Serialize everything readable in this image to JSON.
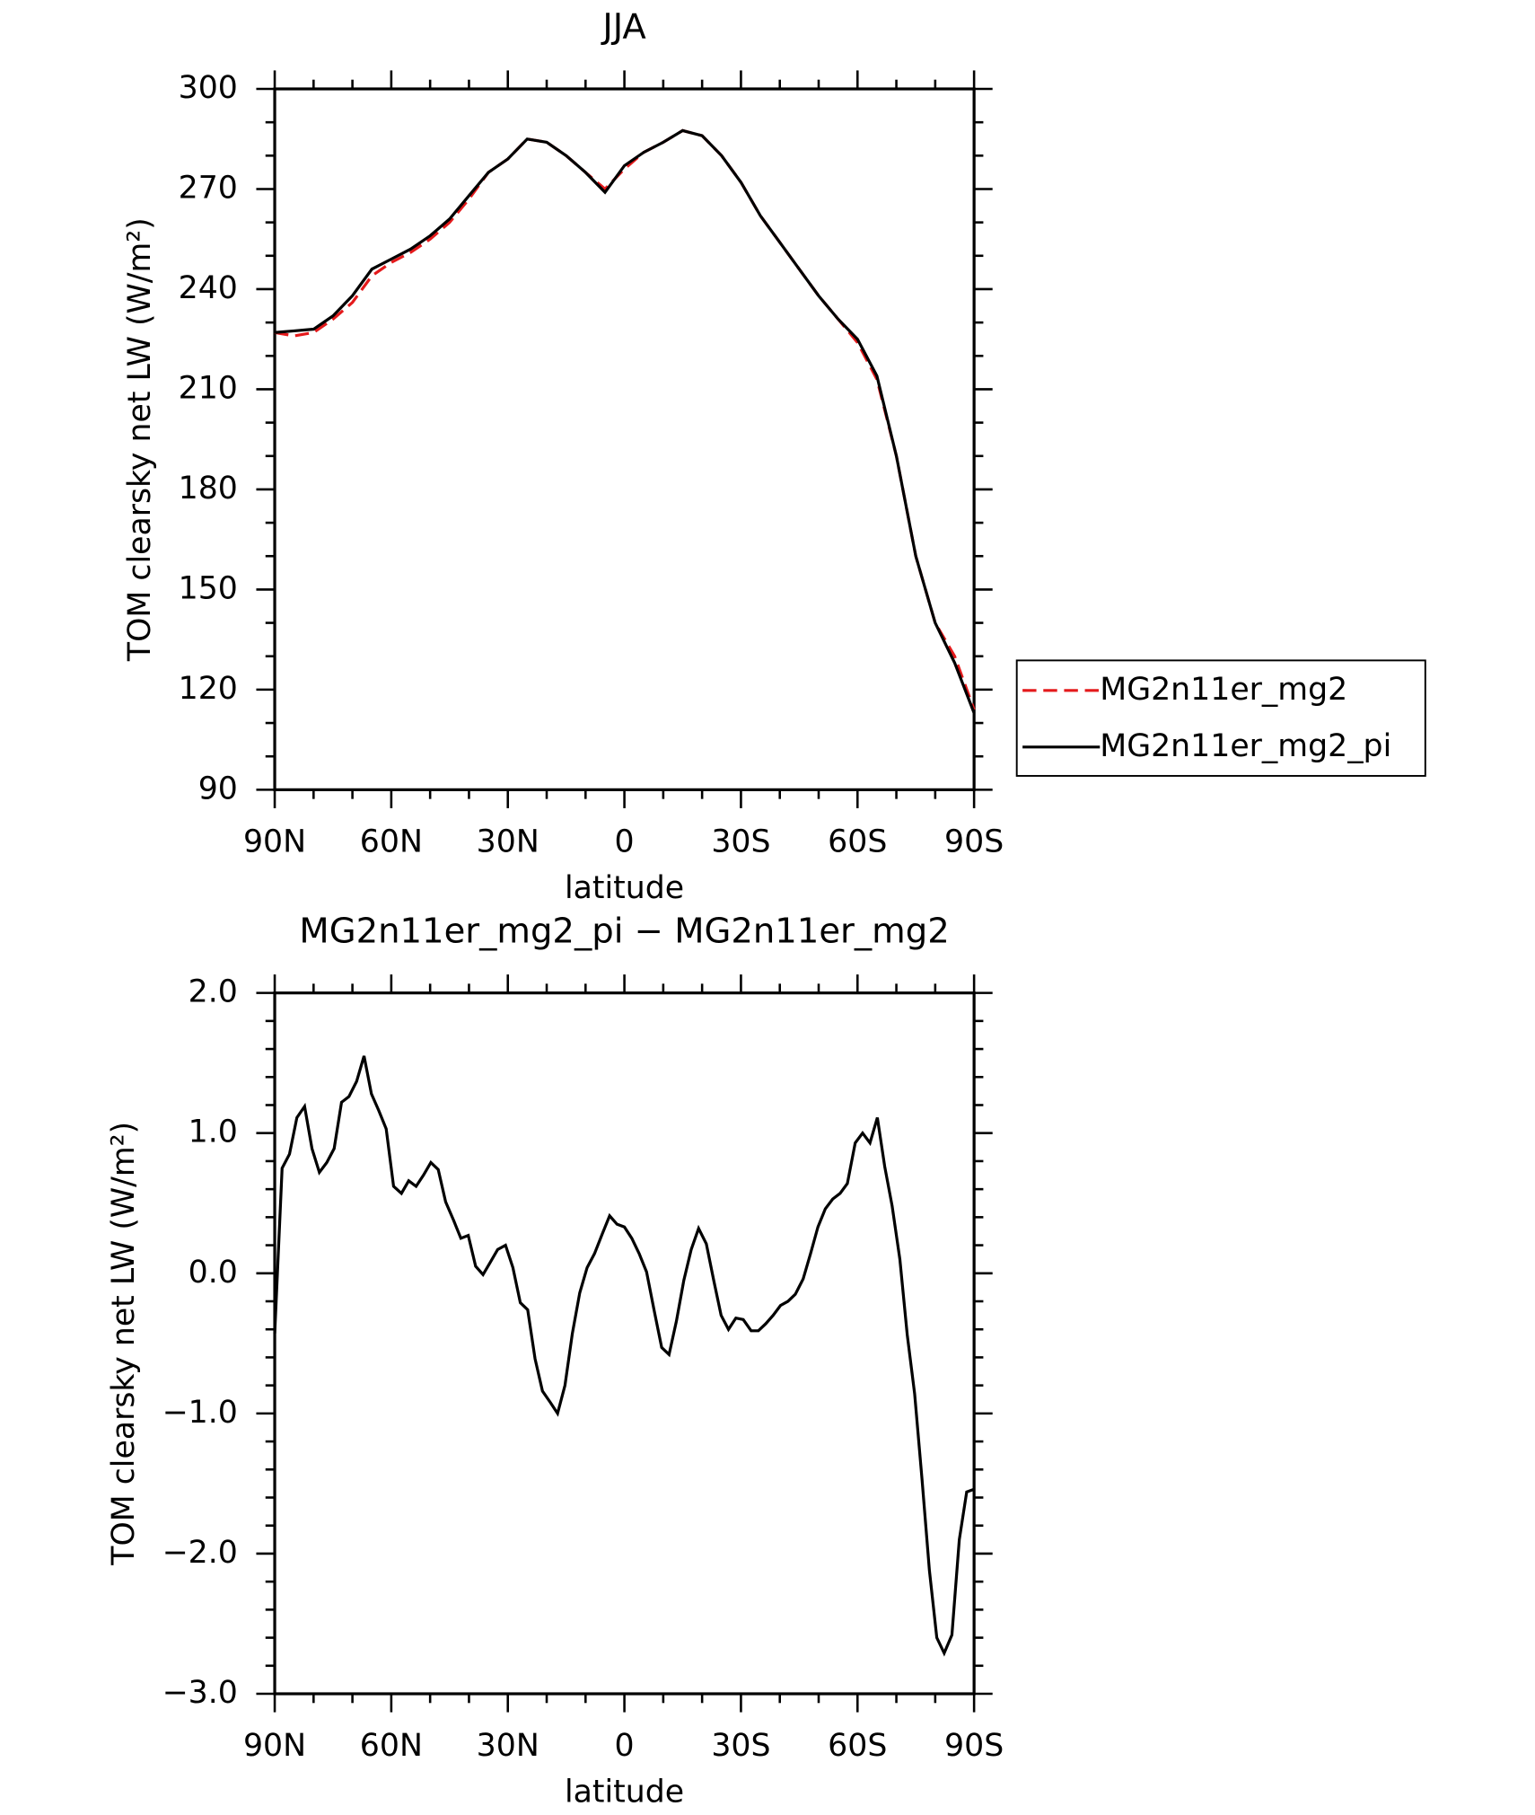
{
  "chart_data": [
    {
      "type": "line",
      "title": "JJA",
      "xlabel": "latitude",
      "ylabel": "TOM clearsky net LW (W/m²)",
      "x": [
        90,
        85,
        80,
        75,
        70,
        65,
        60,
        55,
        50,
        45,
        40,
        35,
        30,
        25,
        20,
        15,
        10,
        5,
        0,
        -5,
        -10,
        -15,
        -20,
        -25,
        -30,
        -35,
        -40,
        -45,
        -50,
        -55,
        -60,
        -65,
        -70,
        -75,
        -80,
        -85,
        -90
      ],
      "series": [
        {
          "name": "MG2n11er_mg2",
          "color": "#e41a1c",
          "dashed": true,
          "values": [
            227,
            226,
            227,
            231,
            236,
            244,
            248,
            251,
            255,
            260,
            267,
            275,
            279,
            285,
            284,
            280,
            275,
            270,
            276,
            281,
            284,
            287.5,
            286,
            280,
            272,
            262,
            254,
            246,
            238,
            231,
            224,
            213,
            190,
            160,
            140,
            130,
            114
          ]
        },
        {
          "name": "MG2n11er_mg2_pi",
          "color": "#000000",
          "dashed": false,
          "values": [
            227,
            227.5,
            228,
            232,
            238,
            246,
            249,
            252,
            256,
            261,
            268,
            275,
            279,
            285,
            284,
            280,
            275,
            269,
            277,
            281,
            284,
            287.5,
            286,
            280,
            272,
            262,
            254,
            246,
            238,
            231,
            225,
            214,
            190,
            160,
            140,
            128,
            113
          ]
        }
      ],
      "xlim": [
        90,
        -90
      ],
      "xticks": [
        {
          "value": 90,
          "label": "90N"
        },
        {
          "value": 60,
          "label": "60N"
        },
        {
          "value": 30,
          "label": "30N"
        },
        0,
        {
          "value": -30,
          "label": "30S"
        },
        {
          "value": -60,
          "label": "60S"
        },
        {
          "value": -90,
          "label": "90S"
        }
      ],
      "ylim": [
        90,
        300
      ],
      "yticks": [
        90,
        120,
        150,
        180,
        210,
        240,
        270,
        300
      ],
      "legend": "right"
    },
    {
      "type": "line",
      "title": "MG2n11er_mg2_pi − MG2n11er_mg2",
      "xlabel": "latitude",
      "ylabel": "TOM clearsky net LW (W/m²)",
      "x": [
        90,
        88.1,
        86.2,
        84.3,
        82.3,
        80.4,
        78.5,
        76.6,
        74.7,
        72.8,
        70.9,
        68.9,
        67.0,
        65.1,
        63.2,
        61.3,
        59.4,
        57.4,
        55.5,
        53.6,
        51.7,
        49.8,
        47.9,
        46.0,
        44.0,
        42.1,
        40.2,
        38.3,
        36.4,
        34.5,
        32.6,
        30.6,
        28.7,
        26.8,
        24.9,
        23.0,
        21.1,
        19.1,
        17.2,
        15.3,
        13.4,
        11.5,
        9.6,
        7.7,
        5.7,
        3.8,
        1.9,
        0,
        -1.9,
        -3.8,
        -5.7,
        -7.7,
        -9.6,
        -11.5,
        -13.4,
        -15.3,
        -17.2,
        -19.1,
        -21.1,
        -23.0,
        -24.9,
        -26.8,
        -28.7,
        -30.6,
        -32.6,
        -34.5,
        -36.4,
        -38.3,
        -40.2,
        -42.1,
        -44.0,
        -46.0,
        -47.9,
        -49.8,
        -51.7,
        -53.6,
        -55.5,
        -57.4,
        -59.4,
        -61.3,
        -63.2,
        -65.1,
        -67.0,
        -68.9,
        -70.9,
        -72.8,
        -74.7,
        -76.6,
        -78.5,
        -80.4,
        -82.3,
        -84.3,
        -86.2,
        -88.1,
        -90
      ],
      "series": [
        {
          "color": "#000000",
          "dashed": false,
          "values": [
            -0.43,
            0.75,
            0.85,
            1.11,
            1.19,
            0.89,
            0.72,
            0.79,
            0.89,
            1.22,
            1.26,
            1.37,
            1.55,
            1.28,
            1.16,
            1.03,
            0.62,
            0.57,
            0.66,
            0.62,
            0.7,
            0.79,
            0.74,
            0.51,
            0.38,
            0.25,
            0.27,
            0.05,
            -0.01,
            0.08,
            0.17,
            0.2,
            0.04,
            -0.21,
            -0.26,
            -0.61,
            -0.84,
            -0.92,
            -1.0,
            -0.8,
            -0.43,
            -0.14,
            0.04,
            0.14,
            0.28,
            0.41,
            0.35,
            0.33,
            0.25,
            0.14,
            0.01,
            -0.27,
            -0.53,
            -0.58,
            -0.34,
            -0.05,
            0.17,
            0.32,
            0.21,
            -0.05,
            -0.3,
            -0.4,
            -0.32,
            -0.33,
            -0.41,
            -0.41,
            -0.36,
            -0.3,
            -0.23,
            -0.2,
            -0.15,
            -0.04,
            0.14,
            0.33,
            0.46,
            0.53,
            0.57,
            0.64,
            0.93,
            1.0,
            0.93,
            1.11,
            0.76,
            0.48,
            0.1,
            -0.44,
            -0.86,
            -1.47,
            -2.12,
            -2.6,
            -2.71,
            -2.58,
            -1.9,
            -1.56,
            -1.54
          ]
        }
      ],
      "xlim": [
        90,
        -90
      ],
      "xticks": [
        {
          "value": 90,
          "label": "90N"
        },
        {
          "value": 60,
          "label": "60N"
        },
        {
          "value": 30,
          "label": "30N"
        },
        0,
        {
          "value": -30,
          "label": "30S"
        },
        {
          "value": -60,
          "label": "60S"
        },
        {
          "value": -90,
          "label": "90S"
        }
      ],
      "ylim": [
        -3,
        2
      ],
      "yticks": [
        {
          "value": -3,
          "label": "−3.0"
        },
        {
          "value": -2,
          "label": "−2.0"
        },
        {
          "value": -1,
          "label": "−1.0"
        },
        {
          "value": 0,
          "label": "0.0"
        },
        {
          "value": 1,
          "label": "1.0"
        },
        {
          "value": 2,
          "label": "2.0"
        }
      ]
    }
  ]
}
